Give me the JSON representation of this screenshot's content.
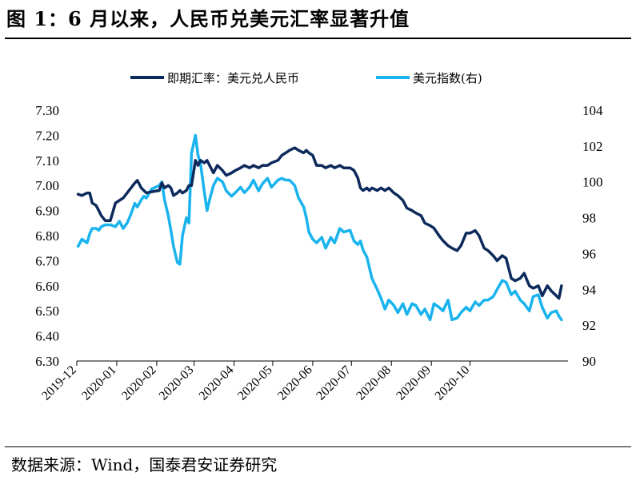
{
  "header": {
    "title": "图 1：6 月以来，人民币兑美元汇率显著升值"
  },
  "footer": {
    "source": "数据来源：Wind，国泰君安证券研究"
  },
  "chart_data": {
    "type": "line",
    "x_labels": [
      "2019-12",
      "2020-01",
      "2020-02",
      "2020-03",
      "2020-04",
      "2020-05",
      "2020-06",
      "2020-07",
      "2020-08",
      "2020-09",
      "2020-10"
    ],
    "y_left": {
      "min": 6.3,
      "max": 7.3,
      "step": 0.1,
      "ticks": [
        "7.30",
        "7.20",
        "7.10",
        "7.00",
        "6.90",
        "6.80",
        "6.70",
        "6.60",
        "6.50",
        "6.40",
        "6.30"
      ]
    },
    "y_right": {
      "min": 90,
      "max": 104,
      "step": 2,
      "ticks": [
        "104",
        "102",
        "100",
        "98",
        "96",
        "94",
        "92",
        "90"
      ]
    },
    "legend_position": "top",
    "grid": false,
    "series": [
      {
        "name": "即期汇率：美元兑人民币",
        "axis": "left",
        "color": "#0d2a5c",
        "points": [
          [
            "2019-12-02",
            6.965
          ],
          [
            "2019-12-05",
            6.96
          ],
          [
            "2019-12-09",
            6.97
          ],
          [
            "2019-12-11",
            6.97
          ],
          [
            "2019-12-13",
            6.93
          ],
          [
            "2019-12-16",
            6.92
          ],
          [
            "2019-12-18",
            6.9
          ],
          [
            "2019-12-20",
            6.88
          ],
          [
            "2019-12-23",
            6.86
          ],
          [
            "2019-12-27",
            6.86
          ],
          [
            "2019-12-31",
            6.93
          ],
          [
            "2020-01-03",
            6.94
          ],
          [
            "2020-01-06",
            6.95
          ],
          [
            "2020-01-09",
            6.97
          ],
          [
            "2020-01-12",
            6.99
          ],
          [
            "2020-01-15",
            7.01
          ],
          [
            "2020-01-17",
            7.02
          ],
          [
            "2020-01-20",
            6.99
          ],
          [
            "2020-01-22",
            6.98
          ],
          [
            "2020-01-24",
            6.97
          ],
          [
            "2020-01-28",
            6.975
          ],
          [
            "2020-02-03",
            6.98
          ],
          [
            "2020-02-05",
            7.01
          ],
          [
            "2020-02-07",
            6.99
          ],
          [
            "2020-02-10",
            7.0
          ],
          [
            "2020-02-12",
            6.99
          ],
          [
            "2020-02-14",
            6.96
          ],
          [
            "2020-02-17",
            6.97
          ],
          [
            "2020-02-19",
            6.98
          ],
          [
            "2020-02-21",
            6.97
          ],
          [
            "2020-02-24",
            6.98
          ],
          [
            "2020-02-26",
            7.0
          ],
          [
            "2020-02-28",
            7.0
          ],
          [
            "2020-03-02",
            7.1
          ],
          [
            "2020-03-04",
            7.08
          ],
          [
            "2020-03-06",
            7.1
          ],
          [
            "2020-03-09",
            7.09
          ],
          [
            "2020-03-11",
            7.1
          ],
          [
            "2020-03-13",
            7.08
          ],
          [
            "2020-03-16",
            7.05
          ],
          [
            "2020-03-19",
            7.08
          ],
          [
            "2020-03-23",
            7.06
          ],
          [
            "2020-03-26",
            7.04
          ],
          [
            "2020-03-30",
            7.05
          ],
          [
            "2020-04-02",
            7.06
          ],
          [
            "2020-04-06",
            7.07
          ],
          [
            "2020-04-09",
            7.08
          ],
          [
            "2020-04-13",
            7.07
          ],
          [
            "2020-04-16",
            7.08
          ],
          [
            "2020-04-20",
            7.07
          ],
          [
            "2020-04-23",
            7.08
          ],
          [
            "2020-04-27",
            7.08
          ],
          [
            "2020-04-30",
            7.09
          ],
          [
            "2020-05-05",
            7.1
          ],
          [
            "2020-05-08",
            7.12
          ],
          [
            "2020-05-11",
            7.13
          ],
          [
            "2020-05-14",
            7.14
          ],
          [
            "2020-05-18",
            7.15
          ],
          [
            "2020-05-21",
            7.14
          ],
          [
            "2020-05-25",
            7.13
          ],
          [
            "2020-05-27",
            7.14
          ],
          [
            "2020-05-29",
            7.13
          ],
          [
            "2020-06-01",
            7.12
          ],
          [
            "2020-06-04",
            7.08
          ],
          [
            "2020-06-08",
            7.08
          ],
          [
            "2020-06-11",
            7.07
          ],
          [
            "2020-06-15",
            7.08
          ],
          [
            "2020-06-18",
            7.07
          ],
          [
            "2020-06-22",
            7.08
          ],
          [
            "2020-06-25",
            7.07
          ],
          [
            "2020-06-30",
            7.07
          ],
          [
            "2020-07-03",
            7.06
          ],
          [
            "2020-07-06",
            7.03
          ],
          [
            "2020-07-08",
            6.99
          ],
          [
            "2020-07-10",
            6.98
          ],
          [
            "2020-07-13",
            6.99
          ],
          [
            "2020-07-15",
            6.98
          ],
          [
            "2020-07-17",
            6.99
          ],
          [
            "2020-07-21",
            6.98
          ],
          [
            "2020-07-24",
            6.99
          ],
          [
            "2020-07-27",
            6.98
          ],
          [
            "2020-07-30",
            6.99
          ],
          [
            "2020-08-03",
            6.97
          ],
          [
            "2020-08-06",
            6.96
          ],
          [
            "2020-08-10",
            6.94
          ],
          [
            "2020-08-13",
            6.91
          ],
          [
            "2020-08-17",
            6.9
          ],
          [
            "2020-08-20",
            6.89
          ],
          [
            "2020-08-24",
            6.88
          ],
          [
            "2020-08-27",
            6.85
          ],
          [
            "2020-08-31",
            6.84
          ],
          [
            "2020-09-03",
            6.83
          ],
          [
            "2020-09-07",
            6.8
          ],
          [
            "2020-09-10",
            6.78
          ],
          [
            "2020-09-14",
            6.76
          ],
          [
            "2020-09-17",
            6.75
          ],
          [
            "2020-09-21",
            6.74
          ],
          [
            "2020-09-24",
            6.76
          ],
          [
            "2020-09-28",
            6.81
          ],
          [
            "2020-10-01",
            6.81
          ],
          [
            "2020-10-05",
            6.82
          ],
          [
            "2020-10-08",
            6.8
          ],
          [
            "2020-10-12",
            6.75
          ],
          [
            "2020-10-15",
            6.74
          ],
          [
            "2020-10-19",
            6.72
          ],
          [
            "2020-10-22",
            6.7
          ],
          [
            "2020-10-26",
            6.72
          ],
          [
            "2020-10-29",
            6.71
          ],
          [
            "2020-11-02",
            6.63
          ],
          [
            "2020-11-05",
            6.62
          ],
          [
            "2020-11-09",
            6.63
          ],
          [
            "2020-11-12",
            6.65
          ],
          [
            "2020-11-16",
            6.6
          ],
          [
            "2020-11-19",
            6.59
          ],
          [
            "2020-11-23",
            6.6
          ],
          [
            "2020-11-26",
            6.56
          ],
          [
            "2020-11-30",
            6.6
          ],
          [
            "2020-12-03",
            6.58
          ],
          [
            "2020-12-07",
            6.56
          ],
          [
            "2020-12-09",
            6.55
          ],
          [
            "2020-12-11",
            6.6
          ]
        ]
      },
      {
        "name": "美元指数(右)",
        "axis": "right",
        "color": "#19b3ee",
        "points": [
          [
            "2019-12-02",
            96.4
          ],
          [
            "2019-12-05",
            96.8
          ],
          [
            "2019-12-09",
            96.6
          ],
          [
            "2019-12-11",
            97.1
          ],
          [
            "2019-12-13",
            97.4
          ],
          [
            "2019-12-16",
            97.4
          ],
          [
            "2019-12-18",
            97.3
          ],
          [
            "2019-12-20",
            97.5
          ],
          [
            "2019-12-23",
            97.6
          ],
          [
            "2019-12-27",
            97.6
          ],
          [
            "2019-12-31",
            97.5
          ],
          [
            "2020-01-03",
            97.8
          ],
          [
            "2020-01-06",
            97.4
          ],
          [
            "2020-01-09",
            97.7
          ],
          [
            "2020-01-12",
            98.2
          ],
          [
            "2020-01-15",
            98.8
          ],
          [
            "2020-01-17",
            98.6
          ],
          [
            "2020-01-20",
            99.0
          ],
          [
            "2020-01-22",
            99.2
          ],
          [
            "2020-01-24",
            99.1
          ],
          [
            "2020-01-28",
            99.6
          ],
          [
            "2020-02-03",
            99.8
          ],
          [
            "2020-02-05",
            100.0
          ],
          [
            "2020-02-07",
            99.0
          ],
          [
            "2020-02-10",
            98.1
          ],
          [
            "2020-02-12",
            97.3
          ],
          [
            "2020-02-14",
            96.4
          ],
          [
            "2020-02-17",
            95.5
          ],
          [
            "2020-02-19",
            95.4
          ],
          [
            "2020-02-21",
            97.0
          ],
          [
            "2020-02-24",
            98.0
          ],
          [
            "2020-02-26",
            97.7
          ],
          [
            "2020-02-28",
            101.6
          ],
          [
            "2020-03-02",
            102.6
          ],
          [
            "2020-03-04",
            101.5
          ],
          [
            "2020-03-06",
            101.0
          ],
          [
            "2020-03-09",
            99.4
          ],
          [
            "2020-03-11",
            98.4
          ],
          [
            "2020-03-13",
            99.0
          ],
          [
            "2020-03-16",
            99.8
          ],
          [
            "2020-03-19",
            100.2
          ],
          [
            "2020-03-23",
            100.0
          ],
          [
            "2020-03-26",
            99.5
          ],
          [
            "2020-03-30",
            99.2
          ],
          [
            "2020-04-02",
            99.4
          ],
          [
            "2020-04-06",
            99.7
          ],
          [
            "2020-04-09",
            99.4
          ],
          [
            "2020-04-13",
            99.7
          ],
          [
            "2020-04-16",
            100.1
          ],
          [
            "2020-04-20",
            99.5
          ],
          [
            "2020-04-23",
            99.9
          ],
          [
            "2020-04-27",
            100.2
          ],
          [
            "2020-04-30",
            99.7
          ],
          [
            "2020-05-05",
            100.1
          ],
          [
            "2020-05-08",
            100.2
          ],
          [
            "2020-05-11",
            100.1
          ],
          [
            "2020-05-14",
            100.1
          ],
          [
            "2020-05-18",
            99.8
          ],
          [
            "2020-05-21",
            99.1
          ],
          [
            "2020-05-25",
            98.6
          ],
          [
            "2020-05-27",
            98.0
          ],
          [
            "2020-05-29",
            97.2
          ],
          [
            "2020-06-01",
            96.8
          ],
          [
            "2020-06-04",
            96.6
          ],
          [
            "2020-06-08",
            96.9
          ],
          [
            "2020-06-11",
            96.3
          ],
          [
            "2020-06-15",
            96.9
          ],
          [
            "2020-06-18",
            96.6
          ],
          [
            "2020-06-22",
            97.4
          ],
          [
            "2020-06-25",
            97.2
          ],
          [
            "2020-06-30",
            97.3
          ],
          [
            "2020-07-03",
            96.7
          ],
          [
            "2020-07-06",
            96.5
          ],
          [
            "2020-07-08",
            96.7
          ],
          [
            "2020-07-10",
            96.2
          ],
          [
            "2020-07-13",
            95.8
          ],
          [
            "2020-07-15",
            95.2
          ],
          [
            "2020-07-17",
            94.6
          ],
          [
            "2020-07-21",
            94.0
          ],
          [
            "2020-07-24",
            93.5
          ],
          [
            "2020-07-27",
            92.9
          ],
          [
            "2020-07-30",
            93.4
          ],
          [
            "2020-08-03",
            93.1
          ],
          [
            "2020-08-06",
            92.7
          ],
          [
            "2020-08-10",
            93.2
          ],
          [
            "2020-08-13",
            92.6
          ],
          [
            "2020-08-17",
            93.2
          ],
          [
            "2020-08-20",
            93.1
          ],
          [
            "2020-08-24",
            92.6
          ],
          [
            "2020-08-27",
            92.9
          ],
          [
            "2020-08-31",
            92.3
          ],
          [
            "2020-09-03",
            93.2
          ],
          [
            "2020-09-07",
            93.0
          ],
          [
            "2020-09-10",
            92.8
          ],
          [
            "2020-09-14",
            93.4
          ],
          [
            "2020-09-17",
            92.3
          ],
          [
            "2020-09-21",
            92.4
          ],
          [
            "2020-09-24",
            92.7
          ],
          [
            "2020-09-28",
            93.0
          ],
          [
            "2020-10-01",
            92.8
          ],
          [
            "2020-10-05",
            93.3
          ],
          [
            "2020-10-08",
            93.1
          ],
          [
            "2020-10-12",
            93.4
          ],
          [
            "2020-10-15",
            93.4
          ],
          [
            "2020-10-19",
            93.6
          ],
          [
            "2020-10-22",
            94.0
          ],
          [
            "2020-10-26",
            94.5
          ],
          [
            "2020-10-29",
            94.4
          ],
          [
            "2020-11-02",
            93.7
          ],
          [
            "2020-11-05",
            93.9
          ],
          [
            "2020-11-09",
            93.4
          ],
          [
            "2020-11-12",
            93.2
          ],
          [
            "2020-11-16",
            92.8
          ],
          [
            "2020-11-19",
            93.6
          ],
          [
            "2020-11-23",
            93.7
          ],
          [
            "2020-11-26",
            93.0
          ],
          [
            "2020-11-30",
            92.4
          ],
          [
            "2020-12-03",
            92.7
          ],
          [
            "2020-12-07",
            92.8
          ],
          [
            "2020-12-09",
            92.5
          ],
          [
            "2020-12-11",
            92.3
          ]
        ]
      }
    ]
  }
}
